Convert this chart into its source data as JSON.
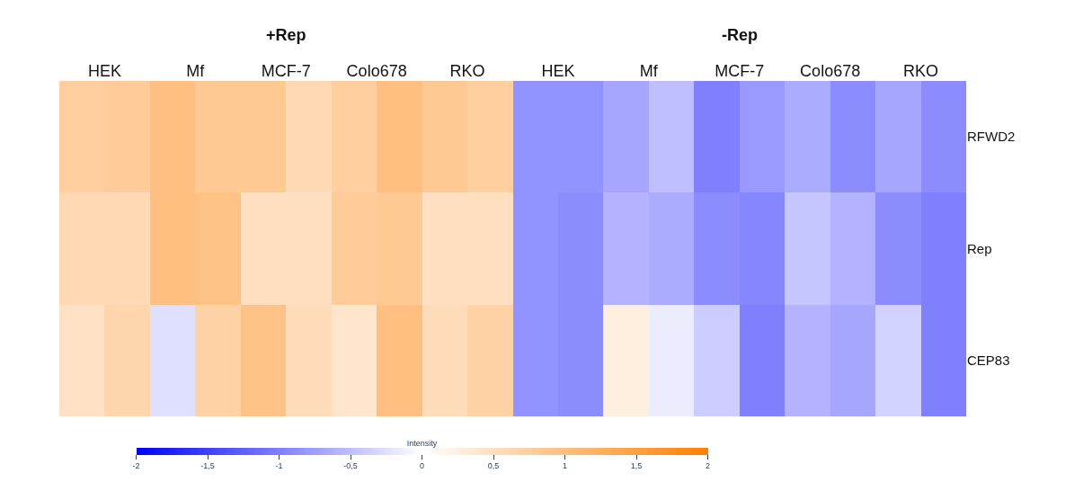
{
  "chart_data": {
    "type": "heatmap",
    "categories": [
      "HEK",
      null,
      "Mf",
      null,
      "MCF-7",
      null,
      "Colo678",
      null,
      "RKO",
      null,
      "HEK",
      null,
      "Mf",
      null,
      "MCF-7",
      null,
      "Colo678",
      null,
      "RKO",
      null
    ],
    "y_categories": [
      "RFWD2",
      "Rep",
      "CEP83"
    ],
    "cells": [
      [
        0.75,
        0.8,
        1.0,
        0.85,
        0.85,
        0.6,
        0.75,
        1.0,
        0.85,
        0.75,
        -0.85,
        -0.85,
        -0.7,
        -0.5,
        -1.0,
        -0.8,
        -0.65,
        -0.9,
        -0.7,
        -0.9
      ],
      [
        0.6,
        0.6,
        1.0,
        0.95,
        0.5,
        0.5,
        0.8,
        0.85,
        0.5,
        0.5,
        -0.85,
        -0.9,
        -0.6,
        -0.65,
        -0.9,
        -0.95,
        -0.45,
        -0.6,
        -0.9,
        -1.0
      ],
      [
        0.45,
        0.65,
        -0.25,
        0.7,
        0.95,
        0.55,
        0.4,
        1.0,
        0.55,
        0.7,
        -0.85,
        -0.9,
        0.25,
        -0.15,
        -0.4,
        -1.0,
        -0.6,
        -0.7,
        -0.35,
        -1.0
      ]
    ],
    "annotations": [
      "+Rep",
      "-Rep"
    ],
    "clabel": "Intensity",
    "clim": [
      -2,
      2
    ],
    "cticks": [
      -2,
      {
        "value": -1.5,
        "label": "-1,5"
      },
      -1,
      {
        "value": -0.5,
        "label": "-0,5"
      },
      0,
      {
        "value": 0.5,
        "label": "0,5"
      },
      1,
      {
        "value": 1.5,
        "label": "1,5"
      },
      2
    ],
    "colors": [
      "#0000ff",
      "#ffffff",
      "#ff7f00"
    ]
  }
}
